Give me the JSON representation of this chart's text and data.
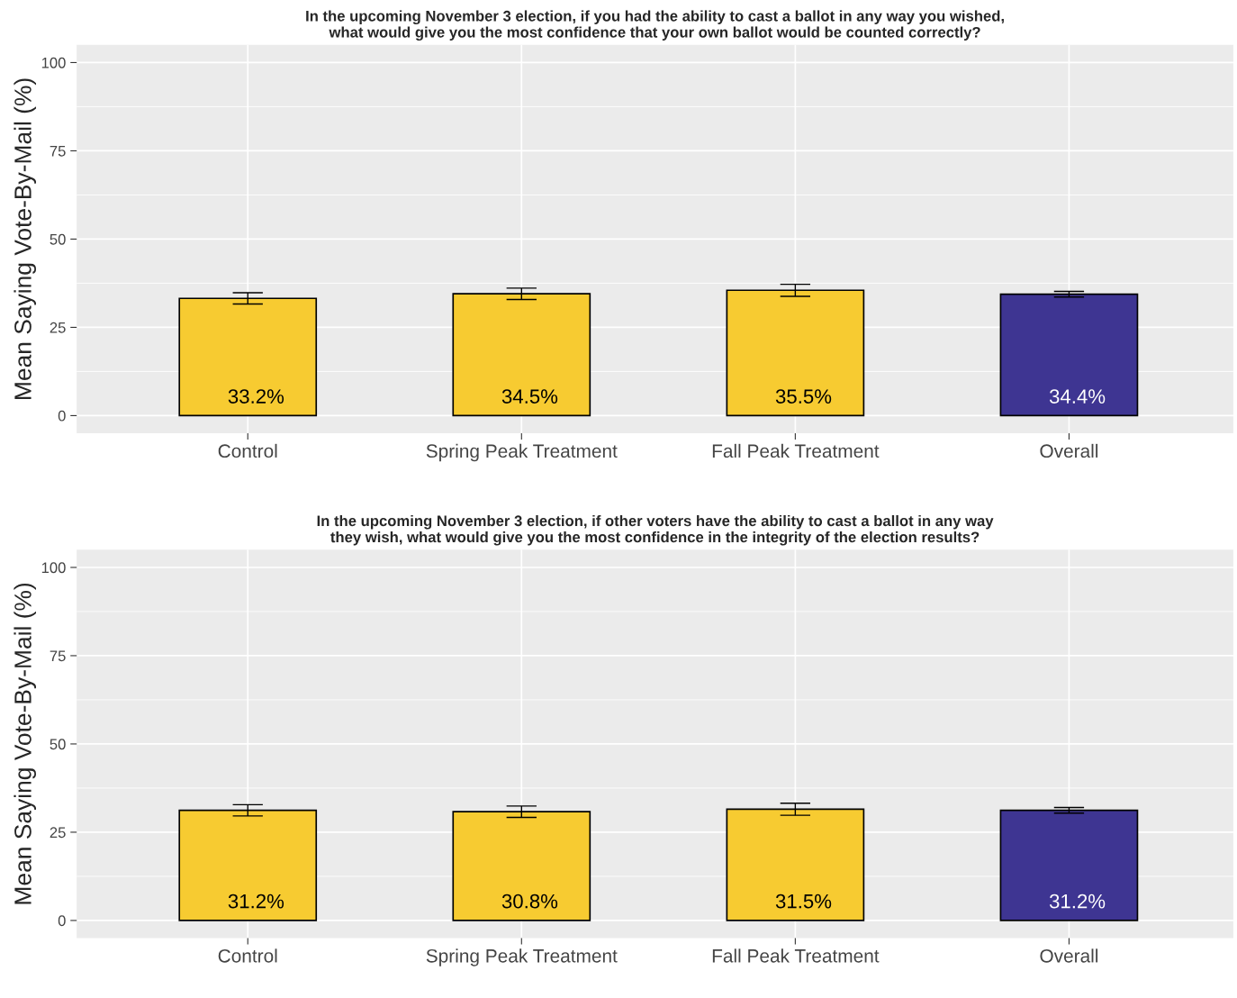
{
  "chart_data": [
    {
      "type": "bar",
      "title": "In the upcoming November 3 election, if you had the ability to cast a ballot in any way you wished,\nwhat would give you the most confidence that your own ballot would be counted correctly?",
      "ylabel": "Mean Saying Vote-By-Mail (%)",
      "categories": [
        "Control",
        "Spring Peak Treatment",
        "Fall Peak Treatment",
        "Overall"
      ],
      "values": [
        33.2,
        34.5,
        35.5,
        34.4
      ],
      "colors": [
        "#f7cb31",
        "#f7cb31",
        "#f7cb31",
        "#3e3592"
      ],
      "errors": [
        1.6,
        1.6,
        1.7,
        0.8
      ],
      "value_labels": [
        "33.2%",
        "34.5%",
        "35.5%",
        "34.4%"
      ],
      "ylim": [
        -5,
        105
      ],
      "yticks": [
        0,
        25,
        50,
        75,
        100
      ],
      "grid": true,
      "legend": false
    },
    {
      "type": "bar",
      "title": "In the upcoming November 3 election, if other voters have the ability to cast a ballot in any way\nthey wish, what would give you the most confidence in the integrity of the election results?",
      "ylabel": "Mean Saying Vote-By-Mail (%)",
      "categories": [
        "Control",
        "Spring Peak Treatment",
        "Fall Peak Treatment",
        "Overall"
      ],
      "values": [
        31.2,
        30.8,
        31.5,
        31.2
      ],
      "colors": [
        "#f7cb31",
        "#f7cb31",
        "#f7cb31",
        "#3e3592"
      ],
      "errors": [
        1.6,
        1.6,
        1.7,
        0.8
      ],
      "value_labels": [
        "31.2%",
        "30.8%",
        "31.5%",
        "31.2%"
      ],
      "ylim": [
        -5,
        105
      ],
      "yticks": [
        0,
        25,
        50,
        75,
        100
      ],
      "grid": true,
      "legend": false
    }
  ]
}
